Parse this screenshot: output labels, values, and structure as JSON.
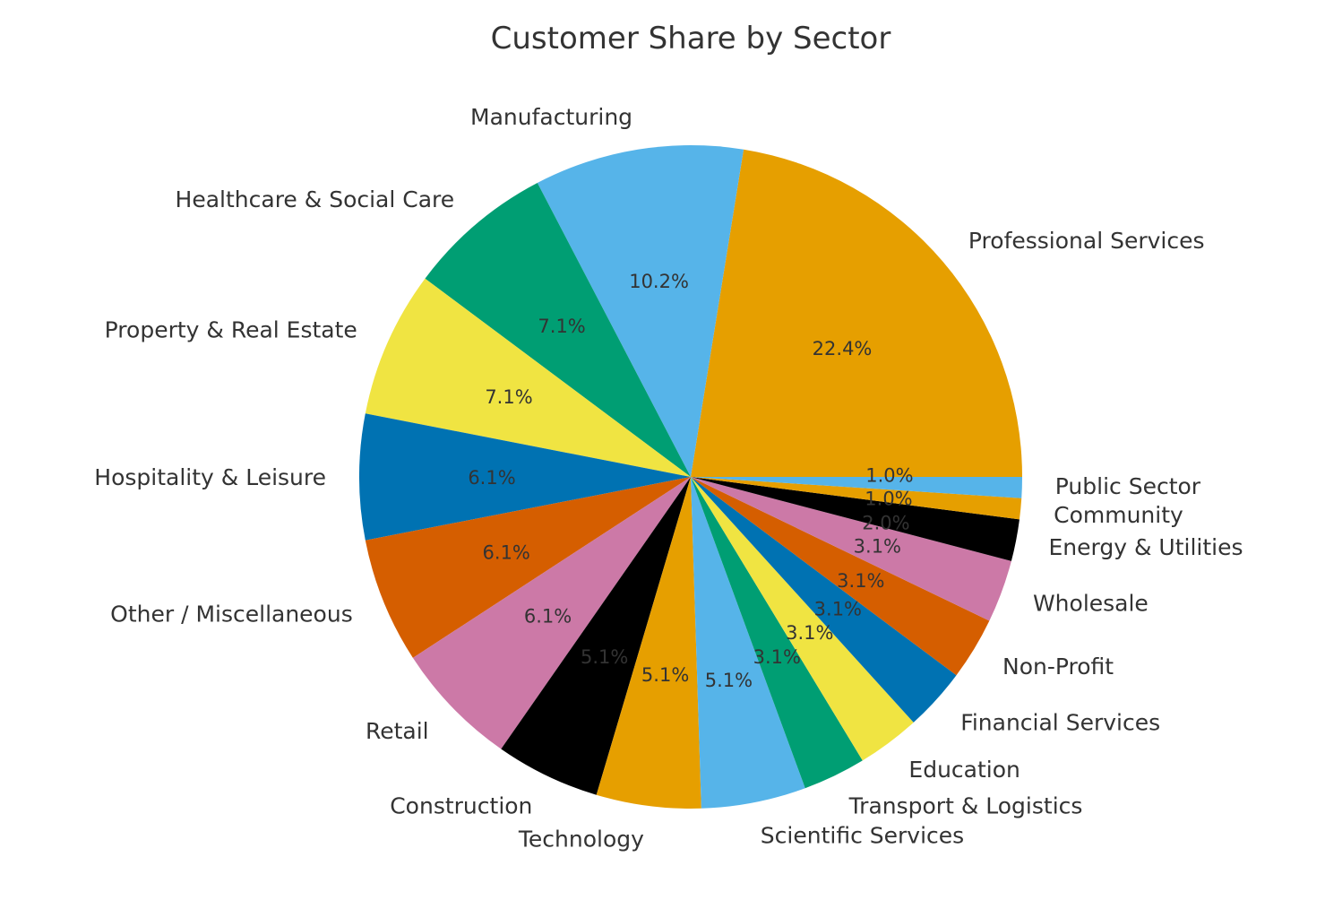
{
  "chart_data": {
    "type": "pie",
    "title": "Customer Share by Sector",
    "start_angle_deg": 0,
    "direction": "counterclockwise",
    "categories": [
      "Professional Services",
      "Manufacturing",
      "Healthcare & Social Care",
      "Property & Real Estate",
      "Hospitality & Leisure",
      "Other / Miscellaneous",
      "Retail",
      "Construction",
      "Technology",
      "Scientific Services",
      "Transport & Logistics",
      "Education",
      "Financial Services",
      "Non-Profit",
      "Wholesale",
      "Energy & Utilities",
      "Community",
      "Public Sector"
    ],
    "values": [
      22,
      10,
      7,
      7,
      6,
      6,
      6,
      5,
      5,
      5,
      3,
      3,
      3,
      3,
      3,
      2,
      1,
      1
    ],
    "percent_labels": [
      "22.4%",
      "10.2%",
      "7.1%",
      "7.1%",
      "6.1%",
      "6.1%",
      "6.1%",
      "5.1%",
      "5.1%",
      "5.1%",
      "3.1%",
      "3.1%",
      "3.1%",
      "3.1%",
      "3.1%",
      "2.0%",
      "1.0%",
      "1.0%"
    ],
    "colors": [
      "#E69F00",
      "#56B4E9",
      "#009E73",
      "#F0E442",
      "#0072B2",
      "#D55E00",
      "#CC79A7",
      "#000000",
      "#E69F00",
      "#56B4E9",
      "#009E73",
      "#F0E442",
      "#0072B2",
      "#D55E00",
      "#CC79A7",
      "#000000",
      "#E69F00",
      "#56B4E9"
    ]
  }
}
